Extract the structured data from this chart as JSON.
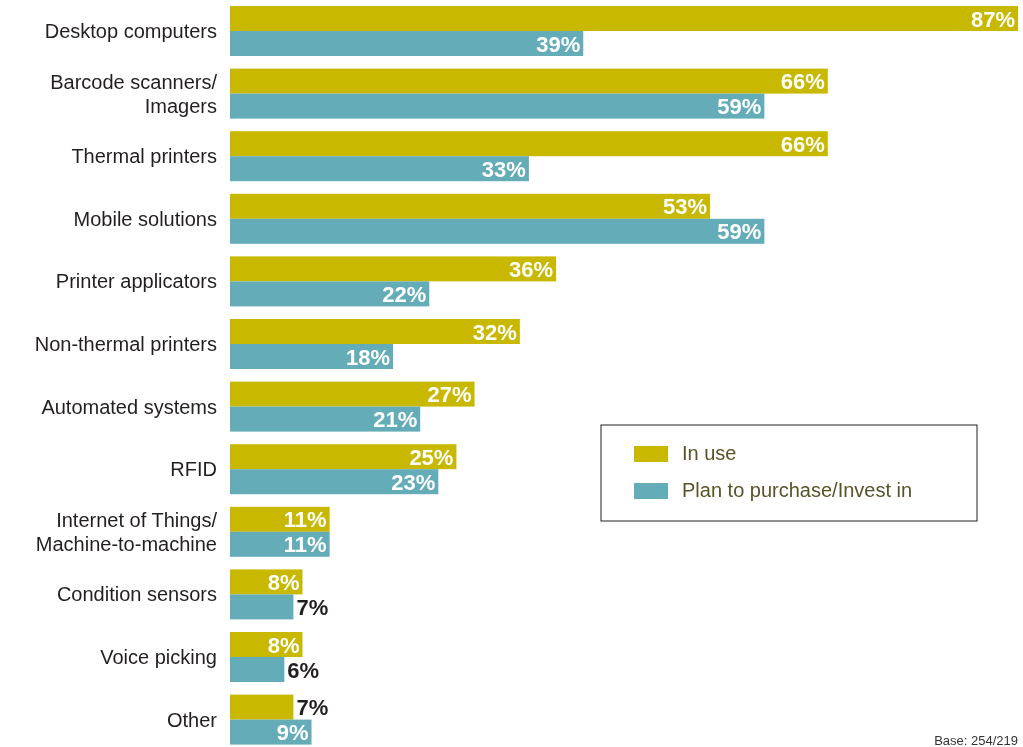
{
  "chart_data": {
    "type": "bar",
    "orientation": "horizontal",
    "categories": [
      "Desktop computers",
      "Barcode scanners/\nImagers",
      "Thermal printers",
      "Mobile solutions",
      "Printer applicators",
      "Non-thermal printers",
      "Automated systems",
      "RFID",
      "Internet of Things/\nMachine-to-machine",
      "Condition sensors",
      "Voice picking",
      "Other"
    ],
    "series": [
      {
        "name": "In use",
        "color": "#c8b900",
        "values": [
          87,
          66,
          66,
          53,
          36,
          32,
          27,
          25,
          11,
          8,
          8,
          7
        ],
        "value_labels": [
          "87%",
          "66%",
          "66%",
          "53%",
          "36%",
          "32%",
          "27%",
          "25%",
          "11%",
          "8%",
          "8%",
          "7%"
        ]
      },
      {
        "name": "Plan to purchase/Invest in",
        "color": "#64adb8",
        "values": [
          39,
          59,
          33,
          59,
          22,
          18,
          21,
          23,
          11,
          7,
          6,
          9
        ],
        "value_labels": [
          "39%",
          "59%",
          "33%",
          "59%",
          "22%",
          "18%",
          "21%",
          "23%",
          "11%",
          "7%",
          "6%",
          "9%"
        ]
      }
    ],
    "legend": "right",
    "annotations": [
      "Base: 254/219"
    ]
  }
}
